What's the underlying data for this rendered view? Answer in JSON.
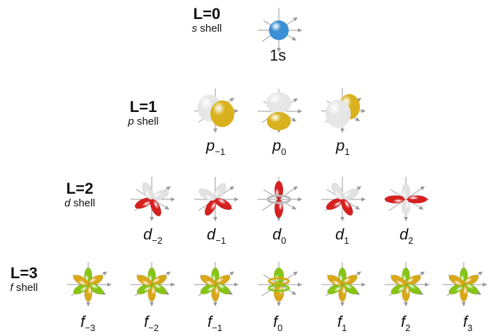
{
  "rows": [
    {
      "shell_number": "L=0",
      "shell_letter": "s",
      "shell_word": "shell",
      "orbitals": [
        {
          "letter": "",
          "index": "",
          "name": "1s",
          "shape": "sphere"
        }
      ]
    },
    {
      "shell_number": "L=1",
      "shell_letter": "p",
      "shell_word": "shell",
      "orbitals": [
        {
          "letter": "p",
          "index": "−1",
          "shape": "p-diag"
        },
        {
          "letter": "p",
          "index": "0",
          "shape": "p-vert"
        },
        {
          "letter": "p",
          "index": "1",
          "shape": "p-diag2"
        }
      ]
    },
    {
      "shell_number": "L=2",
      "shell_letter": "d",
      "shell_word": "shell",
      "orbitals": [
        {
          "letter": "d",
          "index": "−2",
          "shape": "d-x"
        },
        {
          "letter": "d",
          "index": "−1",
          "shape": "d-x2"
        },
        {
          "letter": "d",
          "index": "0",
          "shape": "d-z2"
        },
        {
          "letter": "d",
          "index": "1",
          "shape": "d-x3"
        },
        {
          "letter": "d",
          "index": "2",
          "shape": "d-plus"
        }
      ]
    },
    {
      "shell_number": "L=3",
      "shell_letter": "f",
      "shell_word": "shell",
      "orbitals": [
        {
          "letter": "f",
          "index": "−3",
          "shape": "f"
        },
        {
          "letter": "f",
          "index": "−2",
          "shape": "f"
        },
        {
          "letter": "f",
          "index": "−1",
          "shape": "f"
        },
        {
          "letter": "f",
          "index": "0",
          "shape": "f-z3"
        },
        {
          "letter": "f",
          "index": "1",
          "shape": "f"
        },
        {
          "letter": "f",
          "index": "2",
          "shape": "f"
        },
        {
          "letter": "f",
          "index": "3",
          "shape": "f"
        }
      ]
    }
  ],
  "colors": {
    "s_lobe": "#3a8fd6",
    "positive_p": "#d9b11c",
    "negative_p": "#e6e6e6",
    "d_positive": "#d62020",
    "d_negative": "#e2e2e2",
    "f_positive": "#86c516",
    "f_negative": "#d9a81a",
    "axis": "#9a9a9a"
  }
}
